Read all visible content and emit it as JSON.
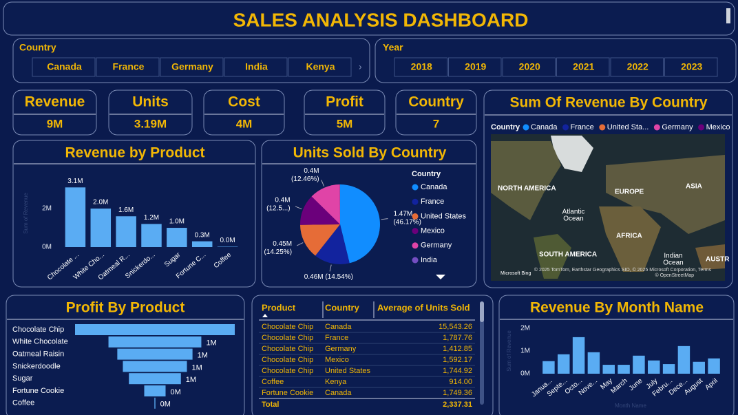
{
  "header": {
    "title": "SALES ANALYSIS DASHBOARD"
  },
  "slicers": {
    "country": {
      "title": "Country",
      "items": [
        "Canada",
        "France",
        "Germany",
        "India",
        "Kenya"
      ]
    },
    "year": {
      "title": "Year",
      "items": [
        "2018",
        "2019",
        "2020",
        "2021",
        "2022",
        "2023"
      ]
    }
  },
  "kpis": [
    {
      "label": "Revenue",
      "value": "9M"
    },
    {
      "label": "Units",
      "value": "3.19M"
    },
    {
      "label": "Cost",
      "value": "4M"
    },
    {
      "label": "Profit",
      "value": "5M"
    },
    {
      "label": "Country",
      "value": "7"
    }
  ],
  "map": {
    "title": "Sum Of Revenue By Country",
    "legend_title": "Country",
    "legend": [
      {
        "name": "Canada",
        "color": "#118dff"
      },
      {
        "name": "France",
        "color": "#12239e"
      },
      {
        "name": "United Sta...",
        "color": "#e66c37"
      },
      {
        "name": "Germany",
        "color": "#e044a7"
      },
      {
        "name": "Mexico",
        "color": "#6b007b"
      }
    ],
    "labels": [
      "NORTH AMERICA",
      "EUROPE",
      "ASIA",
      "Atlantic",
      "Ocean",
      "AFRICA",
      "SOUTH AMERICA",
      "Indian",
      "Ocean",
      "AUSTR"
    ],
    "provider": "Microsoft Bing",
    "attribution": "© 2025 TomTom, Earthstar Geographics SIO, © 2025 Microsoft Corporation, Terms",
    "attribution2": "© OpenStreetMap"
  },
  "table": {
    "columns": [
      "Product",
      "Country",
      "Average of Units Sold"
    ],
    "rows": [
      [
        "Chocolate Chip",
        "Canada",
        "15,543.26"
      ],
      [
        "Chocolate Chip",
        "France",
        "1,787.76"
      ],
      [
        "Chocolate Chip",
        "Germany",
        "1,412.85"
      ],
      [
        "Chocolate Chip",
        "Mexico",
        "1,592.17"
      ],
      [
        "Chocolate Chip",
        "United States",
        "1,744.92"
      ],
      [
        "Coffee",
        "Kenya",
        "914.00"
      ],
      [
        "Fortune Cookie",
        "Canada",
        "1,749.36"
      ]
    ],
    "total_label": "Total",
    "total": "2,337.31"
  },
  "chart_data": [
    {
      "type": "bar",
      "title": "Revenue by Product",
      "y_label": "Sum of Revenue",
      "categories": [
        "Chocolate ...",
        "White Cho...",
        "Oatmeal R...",
        "Snickerdo...",
        "Sugar",
        "Fortune C...",
        "Coffee"
      ],
      "values": [
        3100000,
        2000000,
        1600000,
        1200000,
        1000000,
        300000,
        20000
      ],
      "value_labels": [
        "3.1M",
        "2.0M",
        "1.6M",
        "1.2M",
        "1.0M",
        "0.3M",
        "0.0M"
      ],
      "color": "#5aacf3",
      "ylim": [
        0,
        3540000
      ],
      "yticks": [
        {
          "value": 0,
          "label": "0M"
        },
        {
          "value": 2000000,
          "label": "2M"
        }
      ]
    },
    {
      "type": "pie",
      "title": "Units Sold By Country",
      "legend_title": "Country",
      "categories": [
        "Canada",
        "France",
        "United States",
        "Mexico",
        "Germany",
        "India"
      ],
      "values": [
        1470000,
        460000,
        450000,
        400000,
        400000,
        2500
      ],
      "value_labels": [
        "1.47M",
        "0.46M (14.54%)",
        "0.45M",
        "0.4M",
        "0.4M",
        null
      ],
      "percent_labels": [
        "(46.17%)",
        null,
        "(14.25%)",
        "(12.5...)",
        "(12.46%)",
        null
      ],
      "colors": [
        "#118dff",
        "#12239e",
        "#e66c37",
        "#6b007b",
        "#e044a7",
        "#744ec2"
      ]
    },
    {
      "type": "funnel",
      "title": "Profit By Product",
      "categories": [
        "Chocolate Chip",
        "White Chocolate",
        "Oatmeal Raisin",
        "Snickerdoodle",
        "Sugar",
        "Fortune Cookie",
        "Coffee"
      ],
      "values": [
        1720000,
        1000000,
        810000,
        690000,
        560000,
        230000,
        10000
      ],
      "value_labels": [
        null,
        "1M",
        "1M",
        "1M",
        "1M",
        "0M",
        "0M"
      ],
      "color": "#5aacf3"
    },
    {
      "type": "bar",
      "title": "Revenue By Month Name",
      "y_label": "Sum of Revenue",
      "x_label": "Month Name",
      "categories": [
        "Janua...",
        "Septe...",
        "Octo...",
        "Nove...",
        "May",
        "March",
        "June",
        "July",
        "Febru...",
        "Dece...",
        "August",
        "April"
      ],
      "values": [
        550000,
        850000,
        1600000,
        940000,
        390000,
        390000,
        790000,
        580000,
        420000,
        1210000,
        520000,
        670000
      ],
      "color": "#5aacf3",
      "ylim": [
        0,
        2200000
      ],
      "yticks": [
        {
          "value": 0,
          "label": "0M"
        },
        {
          "value": 1000000,
          "label": "1M"
        },
        {
          "value": 2000000,
          "label": "2M"
        }
      ]
    }
  ]
}
